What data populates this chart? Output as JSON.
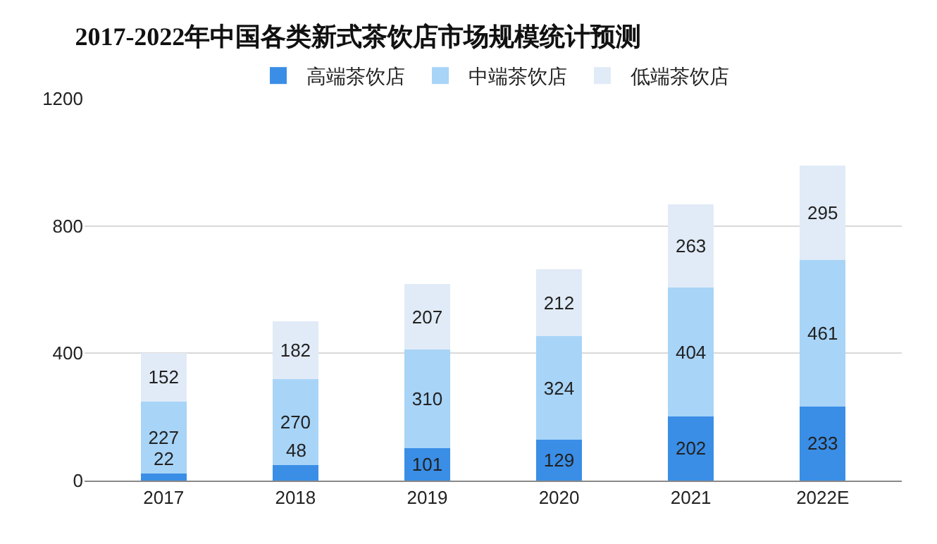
{
  "chart_data": {
    "type": "bar",
    "title": "2017-2022年中国各类新式茶饮店市场规模统计预测",
    "stacked": true,
    "data_labels": true,
    "grid": "y",
    "legend": "top",
    "categories": [
      "2017",
      "2018",
      "2019",
      "2020",
      "2021",
      "2022E"
    ],
    "ylim": [
      0,
      1200
    ],
    "yticks": [
      0,
      400,
      800,
      1200
    ],
    "series": [
      {
        "name": "高端茶饮店",
        "color": "#3a8ee6",
        "values": [
          22,
          48,
          101,
          129,
          202,
          233
        ]
      },
      {
        "name": "中端茶饮店",
        "color": "#a8d4f7",
        "values": [
          227,
          270,
          310,
          324,
          404,
          461
        ]
      },
      {
        "name": "低端茶饮店",
        "color": "#e1ebf7",
        "values": [
          152,
          182,
          207,
          212,
          263,
          295
        ]
      }
    ]
  }
}
